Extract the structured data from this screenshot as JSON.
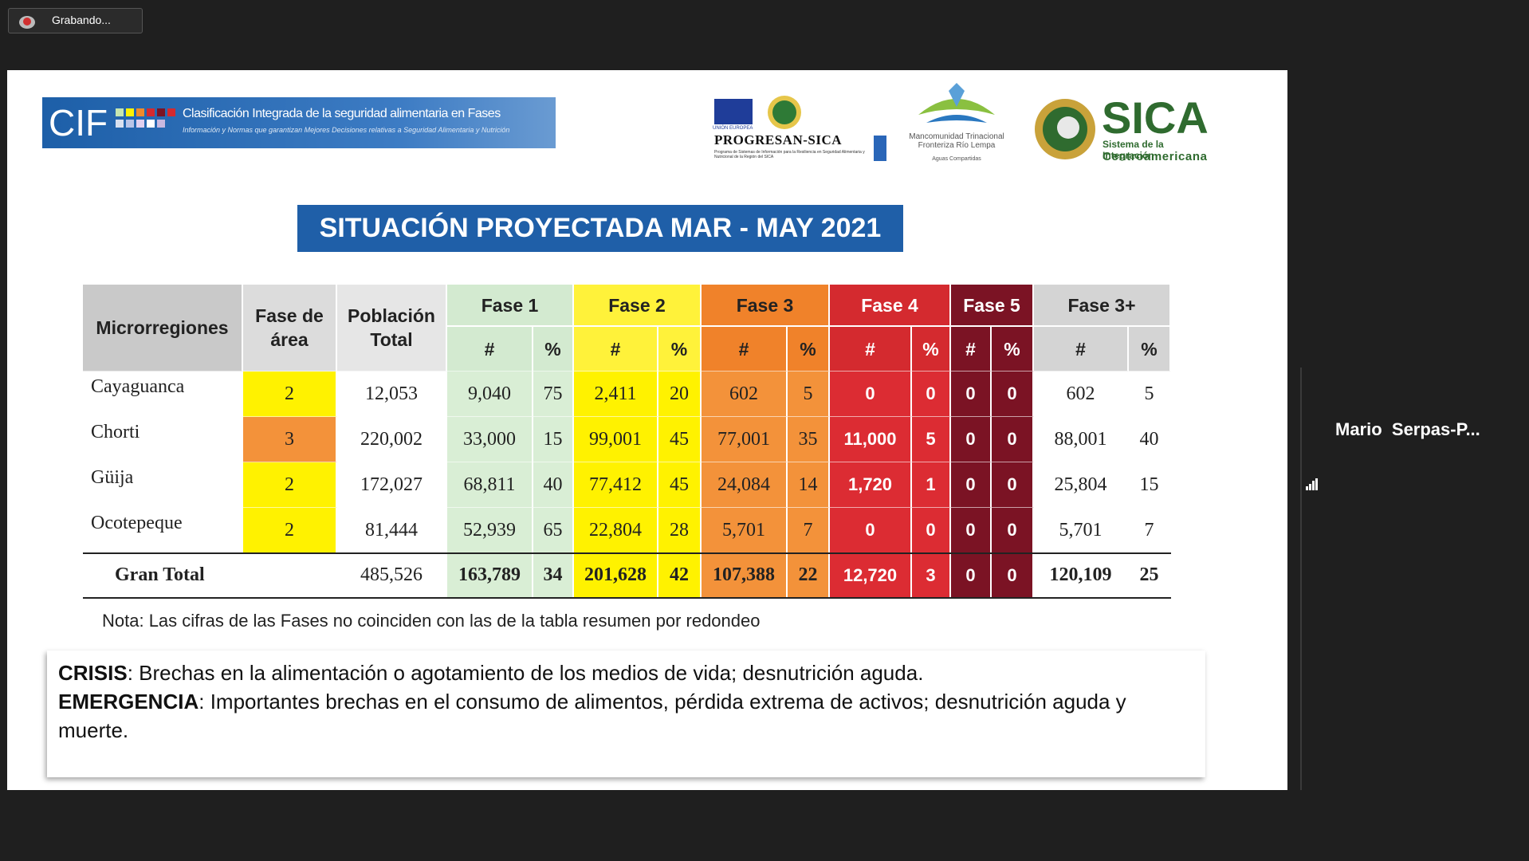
{
  "recording": "Grabando...",
  "participant": "Mario  Serpas-P...",
  "banner": {
    "logo": "CIF",
    "title": "Clasificación Integrada de la seguridad alimentaria en Fases",
    "subtitle": "Información y Normas que garantizan Mejores Decisiones relativas a Seguridad Alimentaria y Nutrición"
  },
  "logos": {
    "union": "UNIÓN EUROPEA",
    "progresan": "PROGRESAN-SICA",
    "progresan_sub": "Programa de Sistemas de Información para la Resiliencia en Seguridad Alimentaria y Nutricional de la Región del SICA",
    "mancomunidad": "Mancomunidad Trinacional Fronteriza Río Lempa",
    "mancomunidad_sub": "Aguas Compartidas",
    "sica": "SICA",
    "sica_sub1": "Sistema de la Integración",
    "sica_sub2": "Centroamericana"
  },
  "title": "SITUACIÓN PROYECTADA MAR - MAY 2021",
  "table": {
    "headers": [
      "Microrregiones",
      "Fase de área",
      "Población Total"
    ],
    "phases": [
      {
        "name": "Fase 1",
        "header_color": "#d3ead0",
        "cell_color": "#d9eed5",
        "text_color": "#222222"
      },
      {
        "name": "Fase 2",
        "header_color": "#fff23a",
        "cell_color": "#fff200",
        "text_color": "#222222"
      },
      {
        "name": "Fase 3",
        "header_color": "#f0822a",
        "cell_color": "#f3923a",
        "text_color": "#222222"
      },
      {
        "name": "Fase 4",
        "header_color": "#d42a2f",
        "cell_color": "#dc2c33",
        "text_color": "#ffffff"
      },
      {
        "name": "Fase 5",
        "header_color": "#7b1324",
        "cell_color": "#7b1324",
        "text_color": "#ffffff"
      },
      {
        "name": "Fase 3+",
        "header_color": "#d4d4d4",
        "cell_color": "#ffffff",
        "text_color": "#222222"
      }
    ],
    "subheaders": [
      "#",
      "%"
    ],
    "rows": [
      [
        "Cayaguanca",
        "2",
        "12,053",
        "9,040",
        "75",
        "2,411",
        "20",
        "602",
        "5",
        "0",
        "0",
        "0",
        "0",
        "602",
        "5"
      ],
      [
        "Chorti",
        "3",
        "220,002",
        "33,000",
        "15",
        "99,001",
        "45",
        "77,001",
        "35",
        "11,000",
        "5",
        "0",
        "0",
        "88,001",
        "40"
      ],
      [
        "Güija",
        "2",
        "172,027",
        "68,811",
        "40",
        "77,412",
        "45",
        "24,084",
        "14",
        "1,720",
        "1",
        "0",
        "0",
        "25,804",
        "15"
      ],
      [
        "Ocotepeque",
        "2",
        "81,444",
        "52,939",
        "65",
        "22,804",
        "28",
        "5,701",
        "7",
        "0",
        "0",
        "0",
        "0",
        "5,701",
        "7"
      ]
    ],
    "total": {
      "label": "Gran Total",
      "values": [
        "485,526",
        "163,789",
        "34",
        "201,628",
        "42",
        "107,388",
        "22",
        "12,720",
        "3",
        "0",
        "0",
        "120,109",
        "25"
      ]
    }
  },
  "note": "Nota: Las cifras de las Fases no coinciden con las de la tabla resumen por redondeo",
  "definitions": [
    {
      "term": "CRISIS",
      "text": ": Brechas en la alimentación o agotamiento de los medios de vida; desnutrición aguda."
    },
    {
      "term": "EMERGENCIA",
      "text": ": Importantes brechas en el consumo de alimentos, pérdida extrema de activos; desnutrición aguda y muerte."
    }
  ]
}
